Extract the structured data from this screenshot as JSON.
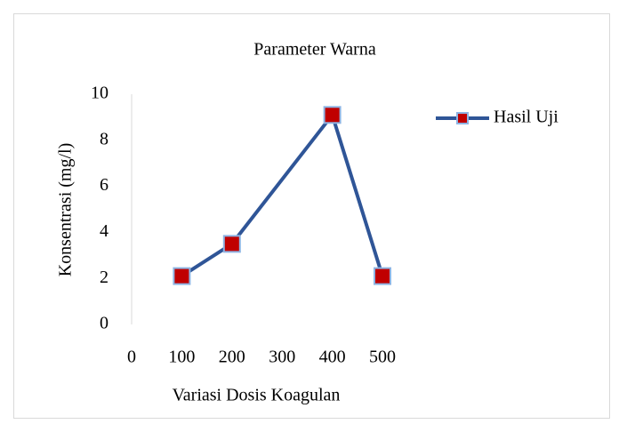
{
  "chart_data": {
    "type": "line",
    "title": "Parameter Warna",
    "x_label": "Variasi Dosis Koagulan",
    "y_label": "Konsentrasi (mg/l)",
    "x": [
      100,
      200,
      400,
      500
    ],
    "series": [
      {
        "name": "Hasil Uji",
        "color": "#2f5597",
        "marker_color": "#c00000",
        "marker_edge": "#8eb4e3",
        "values": [
          2.1,
          3.5,
          9.1,
          2.1
        ]
      }
    ],
    "xlim": [
      0,
      500
    ],
    "xticks": [
      0,
      100,
      200,
      300,
      400,
      500
    ],
    "ylim": [
      0,
      10
    ],
    "yticks": [
      0,
      2,
      4,
      6,
      8,
      10
    ],
    "grid": false,
    "legend": "right"
  }
}
